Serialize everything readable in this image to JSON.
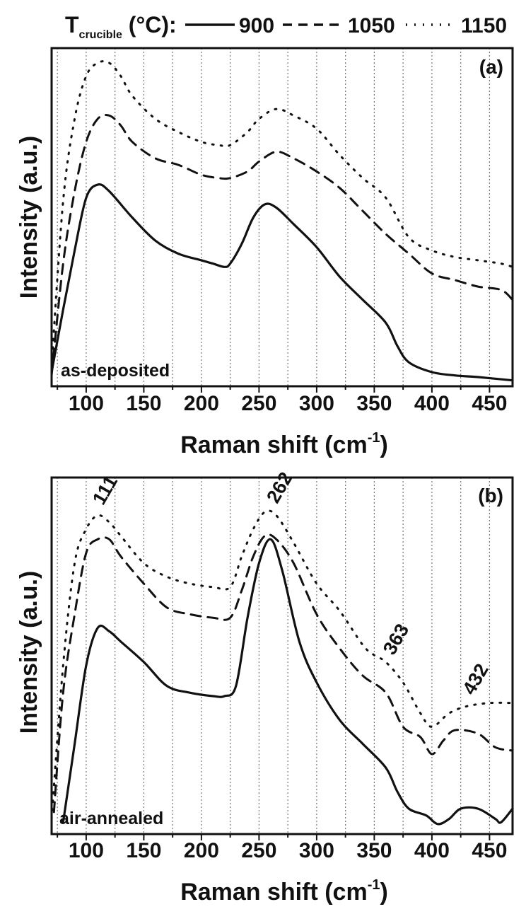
{
  "legend": {
    "prefix": "T",
    "subscript": "crucible",
    "suffix": " (°C):",
    "entries": [
      {
        "label": "900",
        "style": "solid"
      },
      {
        "label": "1050",
        "style": "dashed"
      },
      {
        "label": "1150",
        "style": "dotted"
      }
    ]
  },
  "chart_data": [
    {
      "type": "line",
      "panel_label": "(a)",
      "annotation": "as-deposited",
      "xlabel": "Raman shift (cm",
      "xlabel_sup": "-1",
      "xlabel_close": ")",
      "ylabel": "Intensity (a.u.)",
      "xlim": [
        70,
        470
      ],
      "ylim": [
        0,
        100
      ],
      "xticks": [
        100,
        150,
        200,
        250,
        300,
        350,
        400,
        450
      ],
      "grid_x": [
        75,
        100,
        125,
        150,
        175,
        200,
        225,
        250,
        275,
        300,
        325,
        350,
        375,
        400,
        425,
        450
      ],
      "y_ticks_shown": false,
      "series": [
        {
          "name": "900",
          "style": "solid",
          "points": [
            [
              70,
              3
            ],
            [
              80,
              22
            ],
            [
              90,
              40
            ],
            [
              100,
              56
            ],
            [
              110,
              60
            ],
            [
              120,
              58
            ],
            [
              140,
              50
            ],
            [
              160,
              43
            ],
            [
              180,
              39
            ],
            [
              200,
              37
            ],
            [
              210,
              36
            ],
            [
              220,
              35
            ],
            [
              225,
              36
            ],
            [
              235,
              42
            ],
            [
              245,
              50
            ],
            [
              255,
              54
            ],
            [
              265,
              53
            ],
            [
              280,
              48
            ],
            [
              300,
              41
            ],
            [
              320,
              32
            ],
            [
              340,
              25
            ],
            [
              360,
              18
            ],
            [
              370,
              11
            ],
            [
              380,
              6
            ],
            [
              400,
              3
            ],
            [
              420,
              2
            ],
            [
              440,
              1.5
            ],
            [
              470,
              0.5
            ]
          ]
        },
        {
          "name": "1050",
          "style": "dashed",
          "points": [
            [
              70,
              2
            ],
            [
              80,
              36
            ],
            [
              90,
              58
            ],
            [
              100,
              73
            ],
            [
              110,
              80
            ],
            [
              120,
              81
            ],
            [
              130,
              78
            ],
            [
              140,
              73
            ],
            [
              160,
              68
            ],
            [
              180,
              66
            ],
            [
              200,
              63
            ],
            [
              215,
              62
            ],
            [
              225,
              62
            ],
            [
              240,
              64
            ],
            [
              250,
              67
            ],
            [
              265,
              70
            ],
            [
              280,
              68
            ],
            [
              300,
              64
            ],
            [
              320,
              59
            ],
            [
              340,
              52
            ],
            [
              360,
              45
            ],
            [
              380,
              39
            ],
            [
              400,
              33
            ],
            [
              420,
              31
            ],
            [
              440,
              29
            ],
            [
              460,
              28
            ],
            [
              470,
              25
            ]
          ]
        },
        {
          "name": "1150",
          "style": "dotted",
          "points": [
            [
              70,
              5
            ],
            [
              80,
              55
            ],
            [
              90,
              80
            ],
            [
              100,
              93
            ],
            [
              110,
              97
            ],
            [
              120,
              97
            ],
            [
              130,
              93
            ],
            [
              140,
              87
            ],
            [
              160,
              80
            ],
            [
              180,
              76
            ],
            [
              200,
              73
            ],
            [
              215,
              72
            ],
            [
              225,
              72
            ],
            [
              240,
              76
            ],
            [
              250,
              80
            ],
            [
              265,
              83
            ],
            [
              280,
              81
            ],
            [
              300,
              77
            ],
            [
              320,
              69
            ],
            [
              340,
              62
            ],
            [
              360,
              56
            ],
            [
              380,
              44
            ],
            [
              400,
              40
            ],
            [
              420,
              38
            ],
            [
              440,
              37
            ],
            [
              460,
              36
            ],
            [
              470,
              35
            ]
          ]
        }
      ]
    },
    {
      "type": "line",
      "panel_label": "(b)",
      "annotation": "air-annealed",
      "xlabel": "Raman shift (cm",
      "xlabel_sup": "-1",
      "xlabel_close": ")",
      "ylabel": "Intensity (a.u.)",
      "xlim": [
        70,
        470
      ],
      "ylim": [
        0,
        100
      ],
      "xticks": [
        100,
        150,
        200,
        250,
        300,
        350,
        400,
        450
      ],
      "grid_x": [
        75,
        100,
        125,
        150,
        175,
        200,
        225,
        250,
        275,
        300,
        325,
        350,
        375,
        400,
        425,
        450
      ],
      "y_ticks_shown": false,
      "peak_labels": [
        {
          "text": "111",
          "x": 111
        },
        {
          "text": "262",
          "x": 262
        },
        {
          "text": "363",
          "x": 363
        },
        {
          "text": "432",
          "x": 432
        }
      ],
      "series": [
        {
          "name": "900",
          "style": "solid",
          "points": [
            [
              80,
              2
            ],
            [
              90,
              25
            ],
            [
              100,
              48
            ],
            [
              110,
              59
            ],
            [
              120,
              58
            ],
            [
              130,
              55
            ],
            [
              150,
              49
            ],
            [
              170,
              42
            ],
            [
              190,
              40
            ],
            [
              210,
              39
            ],
            [
              220,
              39
            ],
            [
              230,
              42
            ],
            [
              240,
              62
            ],
            [
              250,
              78
            ],
            [
              260,
              85
            ],
            [
              270,
              76
            ],
            [
              285,
              55
            ],
            [
              300,
              43
            ],
            [
              320,
              32
            ],
            [
              340,
              25
            ],
            [
              360,
              18
            ],
            [
              370,
              11
            ],
            [
              380,
              6
            ],
            [
              395,
              4
            ],
            [
              405,
              1.5
            ],
            [
              415,
              3
            ],
            [
              425,
              6
            ],
            [
              440,
              6
            ],
            [
              455,
              3
            ],
            [
              460,
              2
            ],
            [
              470,
              6
            ]
          ]
        },
        {
          "name": "1050",
          "style": "dashed",
          "points": [
            [
              72,
              5
            ],
            [
              80,
              40
            ],
            [
              90,
              63
            ],
            [
              100,
              81
            ],
            [
              110,
              85
            ],
            [
              120,
              85
            ],
            [
              130,
              80
            ],
            [
              150,
              72
            ],
            [
              170,
              65
            ],
            [
              190,
              63
            ],
            [
              210,
              62
            ],
            [
              225,
              62
            ],
            [
              235,
              70
            ],
            [
              245,
              80
            ],
            [
              255,
              86
            ],
            [
              265,
              85
            ],
            [
              280,
              78
            ],
            [
              300,
              63
            ],
            [
              320,
              53
            ],
            [
              340,
              45
            ],
            [
              360,
              40
            ],
            [
              375,
              30
            ],
            [
              390,
              27
            ],
            [
              400,
              22
            ],
            [
              410,
              26
            ],
            [
              420,
              29
            ],
            [
              440,
              28
            ],
            [
              455,
              24
            ],
            [
              470,
              23
            ]
          ]
        },
        {
          "name": "1150",
          "style": "dotted",
          "points": [
            [
              70,
              3
            ],
            [
              80,
              48
            ],
            [
              90,
              78
            ],
            [
              100,
              88
            ],
            [
              110,
              92
            ],
            [
              120,
              90
            ],
            [
              130,
              86
            ],
            [
              150,
              78
            ],
            [
              170,
              74
            ],
            [
              190,
              72
            ],
            [
              210,
              71
            ],
            [
              225,
              71
            ],
            [
              235,
              80
            ],
            [
              245,
              88
            ],
            [
              255,
              93
            ],
            [
              265,
              92
            ],
            [
              280,
              84
            ],
            [
              300,
              72
            ],
            [
              320,
              64
            ],
            [
              340,
              54
            ],
            [
              350,
              51
            ],
            [
              360,
              49
            ],
            [
              375,
              43
            ],
            [
              390,
              34
            ],
            [
              400,
              30
            ],
            [
              415,
              34
            ],
            [
              430,
              36
            ],
            [
              450,
              37
            ],
            [
              470,
              37
            ]
          ]
        }
      ]
    }
  ]
}
